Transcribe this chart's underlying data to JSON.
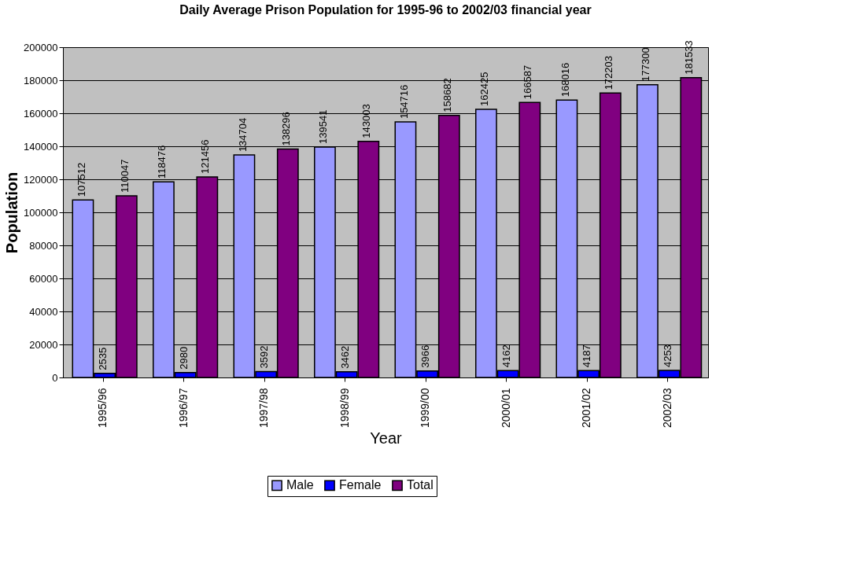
{
  "chart_data": {
    "type": "bar",
    "title": "Daily Average Prison Population for 1995-96 to 2002/03 financial year",
    "xlabel": "Year",
    "ylabel": "Population",
    "categories": [
      "1995/96",
      "1996/97",
      "1997/98",
      "1998/99",
      "1999/00",
      "2000/01",
      "2001/02",
      "2002/03"
    ],
    "series": [
      {
        "name": "Male",
        "color": "#9999ff",
        "values": [
          107512,
          118476,
          134704,
          139541,
          154716,
          162425,
          168016,
          177300
        ]
      },
      {
        "name": "Female",
        "color": "#0000ff",
        "values": [
          2535,
          2980,
          3592,
          3462,
          3966,
          4162,
          4187,
          4253
        ]
      },
      {
        "name": "Total",
        "color": "#800080",
        "values": [
          110047,
          121456,
          138296,
          143003,
          158682,
          166587,
          172203,
          181533
        ]
      }
    ],
    "ylim": [
      0,
      200000
    ],
    "yticks": [
      0,
      20000,
      40000,
      60000,
      80000,
      100000,
      120000,
      140000,
      160000,
      180000,
      200000
    ],
    "grid": "y",
    "legend": "bottom",
    "data_labels": true
  }
}
